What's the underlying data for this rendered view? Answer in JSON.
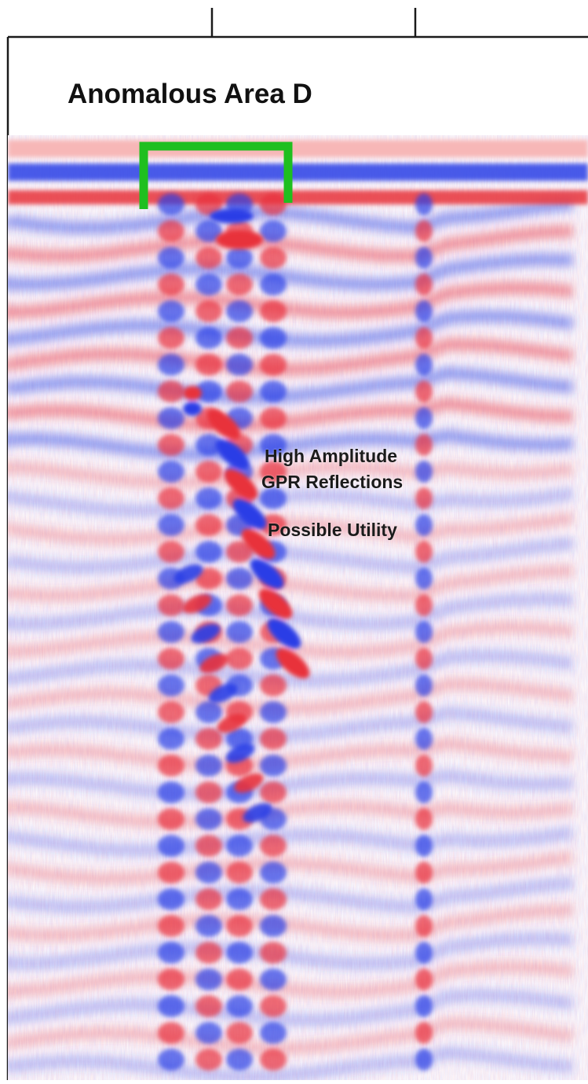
{
  "title": "Anomalous Area D",
  "annotations": {
    "reflections_line1": "High Amplitude",
    "reflections_line2": "GPR Reflections",
    "utility": "Possible Utility"
  },
  "colors": {
    "positive_amplitude": "#e8313a",
    "negative_amplitude": "#2a3ee6",
    "background": "#ffffff",
    "bracket": "#1fbf1f",
    "frame": "#1a1a1a"
  }
}
